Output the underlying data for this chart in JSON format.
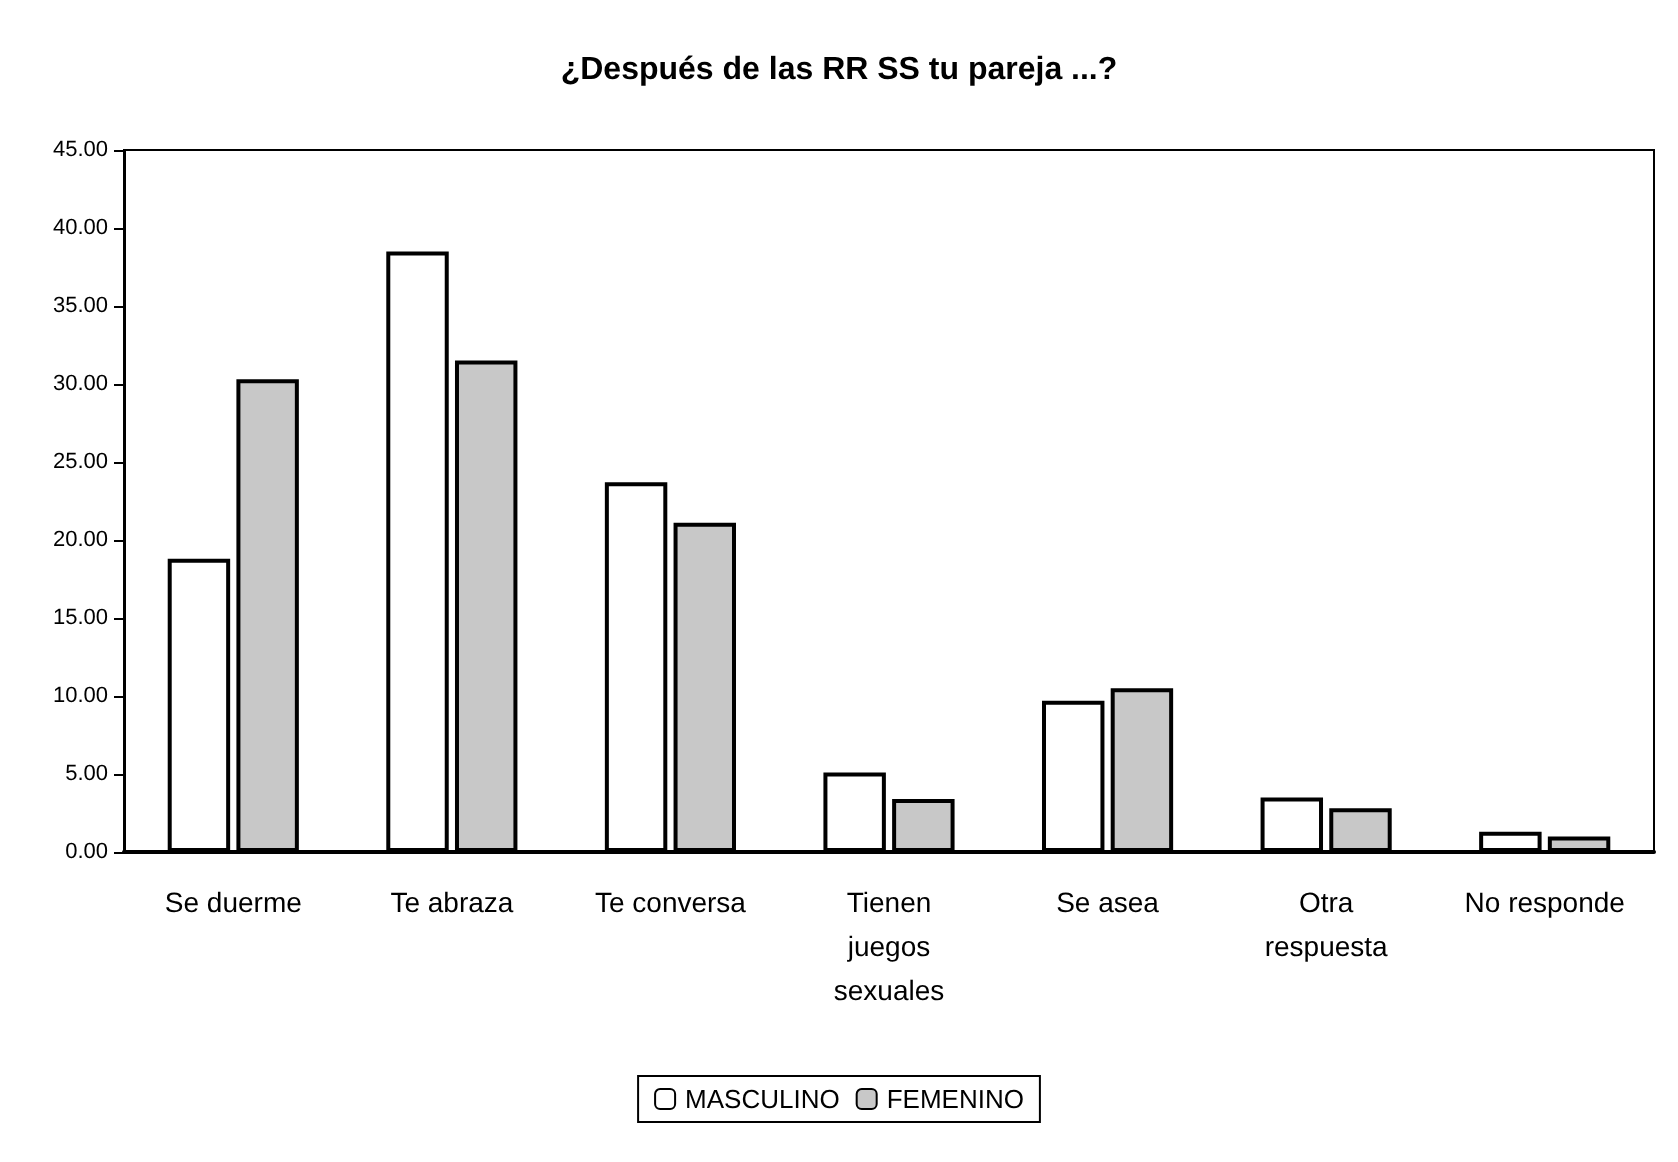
{
  "chart_data": {
    "type": "bar",
    "title": "¿Después de las RR SS tu pareja ...?",
    "categories": [
      "Se duerme",
      "Te abraza",
      "Te conversa",
      "Tienen juegos sexuales",
      "Se asea",
      "Otra respuesta",
      "No responde"
    ],
    "series": [
      {
        "name": "MASCULINO",
        "color": "#ffffff",
        "values": [
          18.8,
          38.5,
          23.7,
          5.1,
          9.7,
          3.5,
          1.3
        ]
      },
      {
        "name": "FEMENINO",
        "color": "#c8c8c8",
        "values": [
          30.3,
          31.5,
          21.1,
          3.4,
          10.5,
          2.8,
          1.0
        ]
      }
    ],
    "ylim": [
      0,
      45
    ],
    "yticks": [
      {
        "value": 0,
        "label": "0.00"
      },
      {
        "value": 5,
        "label": "5.00"
      },
      {
        "value": 10,
        "label": "10.00"
      },
      {
        "value": 15,
        "label": "15.00"
      },
      {
        "value": 20,
        "label": "20.00"
      },
      {
        "value": 25,
        "label": "25.00"
      },
      {
        "value": 30,
        "label": "30.00"
      },
      {
        "value": 35,
        "label": "35.00"
      },
      {
        "value": 40,
        "label": "40.00"
      },
      {
        "value": 45,
        "label": "45.00"
      }
    ],
    "grid": false,
    "legend": "bottom"
  }
}
